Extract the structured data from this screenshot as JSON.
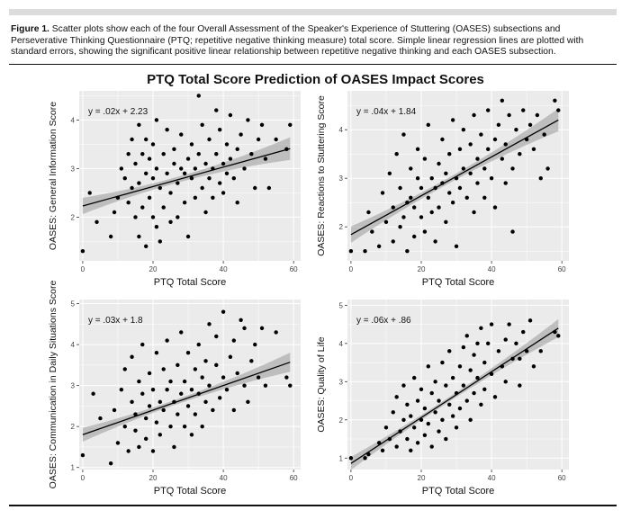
{
  "caption": {
    "label": "Figure 1.",
    "text": "Scatter plots show each of the four Overall Assessment of the Speaker's Experience of Stuttering (OASES) subsections and Perseverative Thinking Questionnaire (PTQ; repetitive negative thinking measure) total score. Simple linear regression lines are plotted with standard errors, showing the significant positive linear relationship between repetitive negative thinking and each OASES subsection."
  },
  "figure_title": "PTQ Total Score Prediction of OASES Impact Scores",
  "colors": {
    "panel_bg": "#ebebeb",
    "grid": "#ffffff",
    "point": "#000000",
    "line": "#000000",
    "band": "#999999"
  },
  "chart_data": [
    {
      "type": "scatter",
      "title": "",
      "xlabel": "PTQ Total Score",
      "ylabel": "OASES: General Information Score",
      "equation": "y = .02x + 2.23",
      "slope": 0.02,
      "intercept": 2.23,
      "xlim": [
        -1,
        62
      ],
      "ylim": [
        1.1,
        4.6
      ],
      "xticks": [
        0,
        20,
        40,
        60
      ],
      "yticks": [
        2,
        3,
        4
      ],
      "points": [
        [
          0,
          1.3
        ],
        [
          2,
          2.5
        ],
        [
          4,
          1.9
        ],
        [
          8,
          1.6
        ],
        [
          9,
          2.1
        ],
        [
          10,
          2.4
        ],
        [
          11,
          3.0
        ],
        [
          12,
          2.8
        ],
        [
          13,
          3.3
        ],
        [
          13,
          2.3
        ],
        [
          14,
          2.6
        ],
        [
          14,
          3.6
        ],
        [
          15,
          2.0
        ],
        [
          15,
          3.1
        ],
        [
          16,
          1.6
        ],
        [
          16,
          2.7
        ],
        [
          16,
          3.9
        ],
        [
          17,
          3.3
        ],
        [
          17,
          2.2
        ],
        [
          18,
          2.9
        ],
        [
          18,
          1.4
        ],
        [
          18,
          3.6
        ],
        [
          19,
          2.4
        ],
        [
          19,
          3.2
        ],
        [
          20,
          2.0
        ],
        [
          20,
          2.8
        ],
        [
          20,
          3.5
        ],
        [
          21,
          1.8
        ],
        [
          21,
          3.0
        ],
        [
          21,
          4.0
        ],
        [
          22,
          2.6
        ],
        [
          22,
          1.5
        ],
        [
          23,
          3.3
        ],
        [
          23,
          2.2
        ],
        [
          24,
          2.9
        ],
        [
          24,
          3.8
        ],
        [
          25,
          1.9
        ],
        [
          25,
          2.5
        ],
        [
          26,
          3.1
        ],
        [
          26,
          3.4
        ],
        [
          27,
          2.7
        ],
        [
          27,
          2.0
        ],
        [
          28,
          3.0
        ],
        [
          28,
          3.7
        ],
        [
          29,
          2.3
        ],
        [
          29,
          2.9
        ],
        [
          30,
          3.2
        ],
        [
          30,
          1.6
        ],
        [
          31,
          2.8
        ],
        [
          31,
          3.5
        ],
        [
          32,
          3.0
        ],
        [
          32,
          2.4
        ],
        [
          33,
          4.5
        ],
        [
          33,
          3.3
        ],
        [
          34,
          2.6
        ],
        [
          34,
          3.9
        ],
        [
          35,
          3.1
        ],
        [
          35,
          2.1
        ],
        [
          36,
          2.8
        ],
        [
          36,
          3.6
        ],
        [
          37,
          3.0
        ],
        [
          37,
          2.4
        ],
        [
          38,
          3.3
        ],
        [
          38,
          4.2
        ],
        [
          39,
          2.7
        ],
        [
          39,
          3.8
        ],
        [
          40,
          3.1
        ],
        [
          40,
          2.5
        ],
        [
          41,
          3.5
        ],
        [
          41,
          2.9
        ],
        [
          42,
          3.2
        ],
        [
          42,
          4.1
        ],
        [
          43,
          2.8
        ],
        [
          44,
          3.4
        ],
        [
          44,
          2.3
        ],
        [
          45,
          3.7
        ],
        [
          46,
          3.0
        ],
        [
          47,
          4.0
        ],
        [
          48,
          3.3
        ],
        [
          49,
          2.6
        ],
        [
          50,
          3.6
        ],
        [
          51,
          3.9
        ],
        [
          52,
          3.2
        ],
        [
          53,
          2.6
        ],
        [
          55,
          3.6
        ],
        [
          58,
          3.4
        ],
        [
          59,
          3.9
        ]
      ]
    },
    {
      "type": "scatter",
      "title": "",
      "xlabel": "PTQ Total Score",
      "ylabel": "OASES: Reactions to Stuttering Score",
      "equation": "y = .04x + 1.84",
      "slope": 0.04,
      "intercept": 1.84,
      "xlim": [
        -1,
        62
      ],
      "ylim": [
        1.3,
        4.8
      ],
      "xticks": [
        0,
        20,
        40,
        60
      ],
      "yticks": [
        2,
        3,
        4
      ],
      "points": [
        [
          0,
          1.5
        ],
        [
          4,
          1.5
        ],
        [
          5,
          2.3
        ],
        [
          6,
          1.9
        ],
        [
          8,
          1.6
        ],
        [
          9,
          2.7
        ],
        [
          10,
          2.1
        ],
        [
          11,
          3.1
        ],
        [
          12,
          2.4
        ],
        [
          12,
          1.7
        ],
        [
          13,
          3.5
        ],
        [
          14,
          2.8
        ],
        [
          14,
          2.0
        ],
        [
          15,
          2.2
        ],
        [
          15,
          3.9
        ],
        [
          16,
          2.5
        ],
        [
          16,
          1.5
        ],
        [
          17,
          3.2
        ],
        [
          17,
          2.6
        ],
        [
          18,
          1.8
        ],
        [
          18,
          2.4
        ],
        [
          19,
          3.0
        ],
        [
          19,
          3.6
        ],
        [
          20,
          2.2
        ],
        [
          20,
          2.8
        ],
        [
          21,
          1.9
        ],
        [
          21,
          3.4
        ],
        [
          22,
          2.6
        ],
        [
          22,
          4.1
        ],
        [
          23,
          2.3
        ],
        [
          23,
          3.0
        ],
        [
          24,
          2.8
        ],
        [
          24,
          1.7
        ],
        [
          25,
          3.3
        ],
        [
          25,
          2.4
        ],
        [
          26,
          2.9
        ],
        [
          26,
          3.8
        ],
        [
          27,
          2.1
        ],
        [
          27,
          3.1
        ],
        [
          28,
          2.7
        ],
        [
          28,
          3.5
        ],
        [
          29,
          4.2
        ],
        [
          29,
          2.5
        ],
        [
          30,
          3.0
        ],
        [
          30,
          1.6
        ],
        [
          31,
          3.6
        ],
        [
          31,
          2.8
        ],
        [
          32,
          3.2
        ],
        [
          32,
          4.0
        ],
        [
          33,
          2.6
        ],
        [
          34,
          3.7
        ],
        [
          34,
          3.1
        ],
        [
          35,
          2.3
        ],
        [
          35,
          4.3
        ],
        [
          36,
          3.4
        ],
        [
          36,
          2.9
        ],
        [
          37,
          3.9
        ],
        [
          38,
          3.2
        ],
        [
          38,
          2.6
        ],
        [
          39,
          4.4
        ],
        [
          39,
          3.6
        ],
        [
          40,
          3.0
        ],
        [
          41,
          3.8
        ],
        [
          41,
          2.4
        ],
        [
          42,
          4.1
        ],
        [
          43,
          3.4
        ],
        [
          43,
          4.6
        ],
        [
          44,
          2.9
        ],
        [
          44,
          3.7
        ],
        [
          45,
          4.3
        ],
        [
          46,
          3.2
        ],
        [
          46,
          1.9
        ],
        [
          47,
          4.0
        ],
        [
          48,
          3.5
        ],
        [
          49,
          4.4
        ],
        [
          50,
          3.8
        ],
        [
          51,
          4.1
        ],
        [
          52,
          3.6
        ],
        [
          53,
          4.3
        ],
        [
          54,
          3.0
        ],
        [
          55,
          3.9
        ],
        [
          56,
          3.2
        ],
        [
          58,
          4.6
        ],
        [
          59,
          4.4
        ]
      ]
    },
    {
      "type": "scatter",
      "title": "",
      "xlabel": "PTQ Total Score",
      "ylabel": "OASES: Communication in Daily Situations Score",
      "equation": "y = .03x + 1.8",
      "slope": 0.03,
      "intercept": 1.8,
      "xlim": [
        -1,
        62
      ],
      "ylim": [
        0.95,
        5.1
      ],
      "xticks": [
        0,
        20,
        40,
        60
      ],
      "yticks": [
        1,
        2,
        3,
        4,
        5
      ],
      "points": [
        [
          0,
          1.3
        ],
        [
          3,
          2.8
        ],
        [
          5,
          2.2
        ],
        [
          8,
          1.1
        ],
        [
          9,
          2.4
        ],
        [
          10,
          1.6
        ],
        [
          11,
          2.9
        ],
        [
          12,
          2.0
        ],
        [
          12,
          3.4
        ],
        [
          13,
          1.4
        ],
        [
          14,
          2.6
        ],
        [
          14,
          3.7
        ],
        [
          15,
          1.9
        ],
        [
          15,
          2.3
        ],
        [
          16,
          3.1
        ],
        [
          16,
          1.5
        ],
        [
          17,
          2.8
        ],
        [
          17,
          4.0
        ],
        [
          18,
          2.2
        ],
        [
          18,
          1.7
        ],
        [
          19,
          3.3
        ],
        [
          19,
          2.5
        ],
        [
          20,
          1.4
        ],
        [
          20,
          2.9
        ],
        [
          21,
          3.8
        ],
        [
          21,
          2.1
        ],
        [
          22,
          2.6
        ],
        [
          22,
          1.8
        ],
        [
          23,
          3.4
        ],
        [
          23,
          2.4
        ],
        [
          24,
          2.9
        ],
        [
          24,
          4.1
        ],
        [
          25,
          2.0
        ],
        [
          25,
          3.1
        ],
        [
          26,
          2.6
        ],
        [
          26,
          1.5
        ],
        [
          27,
          3.5
        ],
        [
          27,
          2.3
        ],
        [
          28,
          2.8
        ],
        [
          28,
          4.3
        ],
        [
          29,
          2.0
        ],
        [
          29,
          3.1
        ],
        [
          30,
          2.5
        ],
        [
          30,
          3.8
        ],
        [
          31,
          2.9
        ],
        [
          31,
          1.8
        ],
        [
          32,
          3.4
        ],
        [
          32,
          2.3
        ],
        [
          33,
          4.0
        ],
        [
          33,
          2.8
        ],
        [
          34,
          3.2
        ],
        [
          34,
          2.0
        ],
        [
          35,
          3.6
        ],
        [
          35,
          2.6
        ],
        [
          36,
          4.5
        ],
        [
          36,
          3.0
        ],
        [
          37,
          2.4
        ],
        [
          38,
          3.5
        ],
        [
          38,
          4.2
        ],
        [
          39,
          2.7
        ],
        [
          40,
          3.2
        ],
        [
          40,
          4.8
        ],
        [
          41,
          2.9
        ],
        [
          42,
          3.7
        ],
        [
          43,
          2.4
        ],
        [
          43,
          4.1
        ],
        [
          44,
          3.3
        ],
        [
          45,
          4.6
        ],
        [
          46,
          3.0
        ],
        [
          46,
          4.4
        ],
        [
          47,
          2.6
        ],
        [
          48,
          3.6
        ],
        [
          49,
          4.0
        ],
        [
          50,
          3.2
        ],
        [
          51,
          4.4
        ],
        [
          52,
          3.0
        ],
        [
          55,
          4.3
        ],
        [
          58,
          3.2
        ],
        [
          59,
          3.0
        ]
      ]
    },
    {
      "type": "scatter",
      "title": "",
      "xlabel": "PTQ Total Score",
      "ylabel": "OASES: Quality of Life",
      "equation": "y = .06x + .86",
      "slope": 0.06,
      "intercept": 0.86,
      "xlim": [
        -1,
        62
      ],
      "ylim": [
        0.7,
        5.15
      ],
      "xticks": [
        0,
        20,
        40,
        60
      ],
      "yticks": [
        1,
        2,
        3,
        4,
        5
      ],
      "points": [
        [
          0,
          1.0
        ],
        [
          4,
          1.0
        ],
        [
          5,
          1.1
        ],
        [
          8,
          1.4
        ],
        [
          9,
          1.2
        ],
        [
          10,
          1.8
        ],
        [
          11,
          1.5
        ],
        [
          12,
          2.2
        ],
        [
          13,
          1.3
        ],
        [
          13,
          2.6
        ],
        [
          14,
          1.7
        ],
        [
          15,
          2.0
        ],
        [
          15,
          2.9
        ],
        [
          16,
          1.5
        ],
        [
          16,
          2.4
        ],
        [
          17,
          1.2
        ],
        [
          17,
          2.1
        ],
        [
          18,
          1.8
        ],
        [
          18,
          3.1
        ],
        [
          19,
          2.5
        ],
        [
          19,
          1.4
        ],
        [
          20,
          2.0
        ],
        [
          20,
          2.8
        ],
        [
          21,
          1.6
        ],
        [
          21,
          2.3
        ],
        [
          22,
          3.4
        ],
        [
          22,
          1.9
        ],
        [
          23,
          2.7
        ],
        [
          23,
          1.3
        ],
        [
          24,
          2.2
        ],
        [
          24,
          3.0
        ],
        [
          25,
          1.7
        ],
        [
          25,
          2.5
        ],
        [
          26,
          3.5
        ],
        [
          26,
          2.0
        ],
        [
          27,
          2.9
        ],
        [
          27,
          1.5
        ],
        [
          28,
          2.4
        ],
        [
          28,
          3.8
        ],
        [
          29,
          2.1
        ],
        [
          29,
          3.1
        ],
        [
          30,
          2.7
        ],
        [
          30,
          1.8
        ],
        [
          31,
          3.4
        ],
        [
          31,
          2.3
        ],
        [
          32,
          3.9
        ],
        [
          32,
          2.9
        ],
        [
          33,
          2.5
        ],
        [
          33,
          4.2
        ],
        [
          34,
          3.3
        ],
        [
          34,
          2.0
        ],
        [
          35,
          3.7
        ],
        [
          35,
          2.7
        ],
        [
          36,
          4.0
        ],
        [
          36,
          3.1
        ],
        [
          37,
          2.4
        ],
        [
          37,
          4.4
        ],
        [
          38,
          3.5
        ],
        [
          38,
          2.8
        ],
        [
          39,
          4.0
        ],
        [
          40,
          3.2
        ],
        [
          40,
          4.5
        ],
        [
          41,
          2.6
        ],
        [
          42,
          3.8
        ],
        [
          43,
          3.4
        ],
        [
          44,
          4.1
        ],
        [
          44,
          3.0
        ],
        [
          45,
          4.5
        ],
        [
          46,
          3.6
        ],
        [
          47,
          4.0
        ],
        [
          48,
          2.9
        ],
        [
          48,
          3.6
        ],
        [
          49,
          4.3
        ],
        [
          50,
          3.8
        ],
        [
          51,
          4.6
        ],
        [
          52,
          3.4
        ],
        [
          54,
          3.8
        ],
        [
          58,
          4.3
        ],
        [
          59,
          4.2
        ]
      ]
    }
  ]
}
